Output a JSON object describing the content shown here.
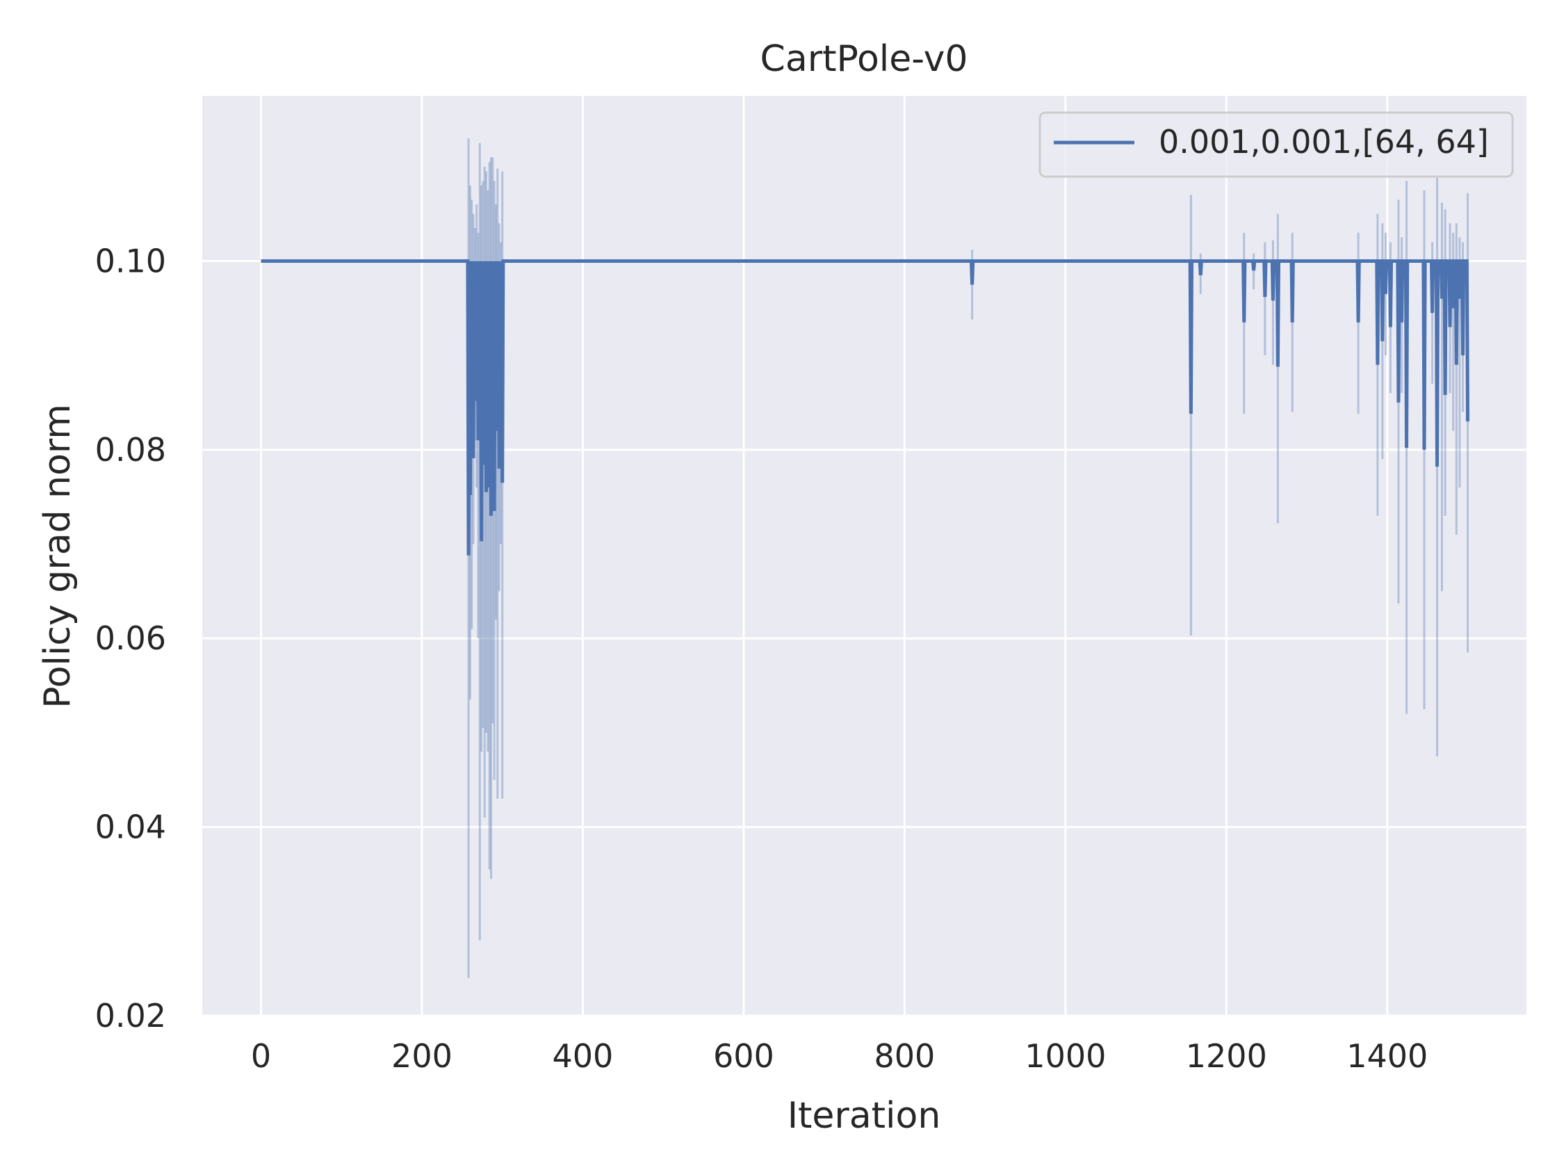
{
  "chart_data": {
    "type": "line",
    "title": "CartPole-v0",
    "xlabel": "Iteration",
    "ylabel": "Policy grad norm",
    "xlim": [
      -73,
      1573
    ],
    "ylim": [
      0.02,
      0.1175
    ],
    "xticks": [
      0,
      200,
      400,
      600,
      800,
      1000,
      1200,
      1400
    ],
    "xtick_labels": [
      "0",
      "200",
      "400",
      "600",
      "800",
      "1000",
      "1200",
      "1400"
    ],
    "yticks": [
      0.02,
      0.04,
      0.06,
      0.08,
      0.1
    ],
    "ytick_labels": [
      "0.02",
      "0.04",
      "0.06",
      "0.08",
      "0.10"
    ],
    "grid": true,
    "legend_position": "top-right",
    "colors": {
      "series": "#4c72b0",
      "background": "#eaeaf2",
      "grid": "#ffffff"
    },
    "baseline": 0.1,
    "x_range": [
      0,
      1500
    ],
    "series": [
      {
        "name": "0.001,0.001,[64, 64]",
        "dips": [
          [
            258,
            0.0688
          ],
          [
            260,
            0.0752
          ],
          [
            262,
            0.0831
          ],
          [
            264,
            0.0791
          ],
          [
            266,
            0.09
          ],
          [
            268,
            0.0852
          ],
          [
            270,
            0.081
          ],
          [
            272,
            0.0892
          ],
          [
            274,
            0.0703
          ],
          [
            276,
            0.0784
          ],
          [
            278,
            0.087
          ],
          [
            280,
            0.0755
          ],
          [
            282,
            0.0815
          ],
          [
            284,
            0.076
          ],
          [
            286,
            0.073
          ],
          [
            288,
            0.0845
          ],
          [
            290,
            0.0735
          ],
          [
            292,
            0.082
          ],
          [
            294,
            0.0862
          ],
          [
            296,
            0.078
          ],
          [
            298,
            0.09
          ],
          [
            300,
            0.0765
          ],
          [
            884,
            0.0975
          ],
          [
            1156,
            0.0838
          ],
          [
            1168,
            0.0985
          ],
          [
            1222,
            0.0935
          ],
          [
            1234,
            0.099
          ],
          [
            1248,
            0.0962
          ],
          [
            1258,
            0.0958
          ],
          [
            1264,
            0.0888
          ],
          [
            1282,
            0.0935
          ],
          [
            1364,
            0.0935
          ],
          [
            1388,
            0.089
          ],
          [
            1394,
            0.0915
          ],
          [
            1398,
            0.0965
          ],
          [
            1404,
            0.093
          ],
          [
            1414,
            0.085
          ],
          [
            1418,
            0.0935
          ],
          [
            1424,
            0.0802
          ],
          [
            1446,
            0.08
          ],
          [
            1456,
            0.0945
          ],
          [
            1462,
            0.0782
          ],
          [
            1468,
            0.096
          ],
          [
            1472,
            0.0858
          ],
          [
            1478,
            0.093
          ],
          [
            1482,
            0.095
          ],
          [
            1486,
            0.089
          ],
          [
            1490,
            0.096
          ],
          [
            1494,
            0.09
          ],
          [
            1500,
            0.083
          ]
        ],
        "band": [
          [
            258,
            0.024,
            0.113
          ],
          [
            260,
            0.0535,
            0.108
          ],
          [
            262,
            0.061,
            0.1065
          ],
          [
            264,
            0.07,
            0.105
          ],
          [
            266,
            0.081,
            0.1035
          ],
          [
            268,
            0.076,
            0.106
          ],
          [
            270,
            0.06,
            0.103
          ],
          [
            272,
            0.028,
            0.1125
          ],
          [
            274,
            0.048,
            0.108
          ],
          [
            276,
            0.0505,
            0.1085
          ],
          [
            278,
            0.041,
            0.11
          ],
          [
            280,
            0.05,
            0.1095
          ],
          [
            282,
            0.048,
            0.1075
          ],
          [
            284,
            0.0355,
            0.1105
          ],
          [
            286,
            0.0345,
            0.111
          ],
          [
            288,
            0.051,
            0.111
          ],
          [
            290,
            0.045,
            0.1085
          ],
          [
            292,
            0.062,
            0.106
          ],
          [
            294,
            0.043,
            0.1098
          ],
          [
            296,
            0.065,
            0.104
          ],
          [
            298,
            0.07,
            0.102
          ],
          [
            300,
            0.043,
            0.1095
          ],
          [
            884,
            0.0938,
            0.1012
          ],
          [
            1156,
            0.0603,
            0.107
          ],
          [
            1168,
            0.0965,
            0.1008
          ],
          [
            1222,
            0.0838,
            0.103
          ],
          [
            1234,
            0.097,
            0.1008
          ],
          [
            1248,
            0.09,
            0.102
          ],
          [
            1258,
            0.089,
            0.1022
          ],
          [
            1264,
            0.0722,
            0.105
          ],
          [
            1282,
            0.084,
            0.103
          ],
          [
            1364,
            0.0838,
            0.103
          ],
          [
            1388,
            0.073,
            0.105
          ],
          [
            1394,
            0.079,
            0.104
          ],
          [
            1398,
            0.09,
            0.103
          ],
          [
            1404,
            0.086,
            0.102
          ],
          [
            1414,
            0.0637,
            0.1065
          ],
          [
            1418,
            0.086,
            0.1025
          ],
          [
            1424,
            0.052,
            0.1085
          ],
          [
            1446,
            0.0525,
            0.1075
          ],
          [
            1456,
            0.087,
            0.102
          ],
          [
            1462,
            0.0475,
            0.1088
          ],
          [
            1468,
            0.065,
            0.1062
          ],
          [
            1472,
            0.073,
            0.1055
          ],
          [
            1478,
            0.086,
            0.104
          ],
          [
            1482,
            0.082,
            0.103
          ],
          [
            1486,
            0.071,
            0.104
          ],
          [
            1490,
            0.076,
            0.1025
          ],
          [
            1494,
            0.084,
            0.102
          ],
          [
            1500,
            0.0585,
            0.1072
          ]
        ]
      }
    ]
  }
}
